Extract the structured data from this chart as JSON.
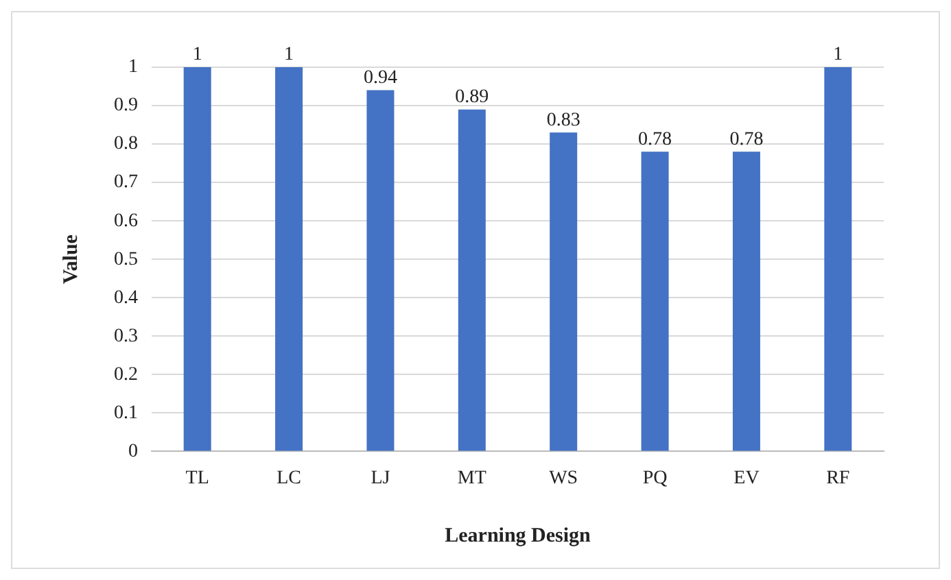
{
  "chart_data": {
    "type": "bar",
    "xlabel": "Learning Design",
    "ylabel": "Value",
    "categories": [
      "TL",
      "LC",
      "LJ",
      "MT",
      "WS",
      "PQ",
      "EV",
      "RF"
    ],
    "values": [
      1,
      1,
      0.94,
      0.89,
      0.83,
      0.78,
      0.78,
      1
    ],
    "color": "#4472c4",
    "ylim": [
      0,
      1
    ],
    "yticks": [
      0,
      0.1,
      0.2,
      0.3,
      0.4,
      0.5,
      0.6,
      0.7,
      0.8,
      0.9,
      1
    ],
    "grid": "y",
    "legend": false,
    "data_labels": true
  }
}
